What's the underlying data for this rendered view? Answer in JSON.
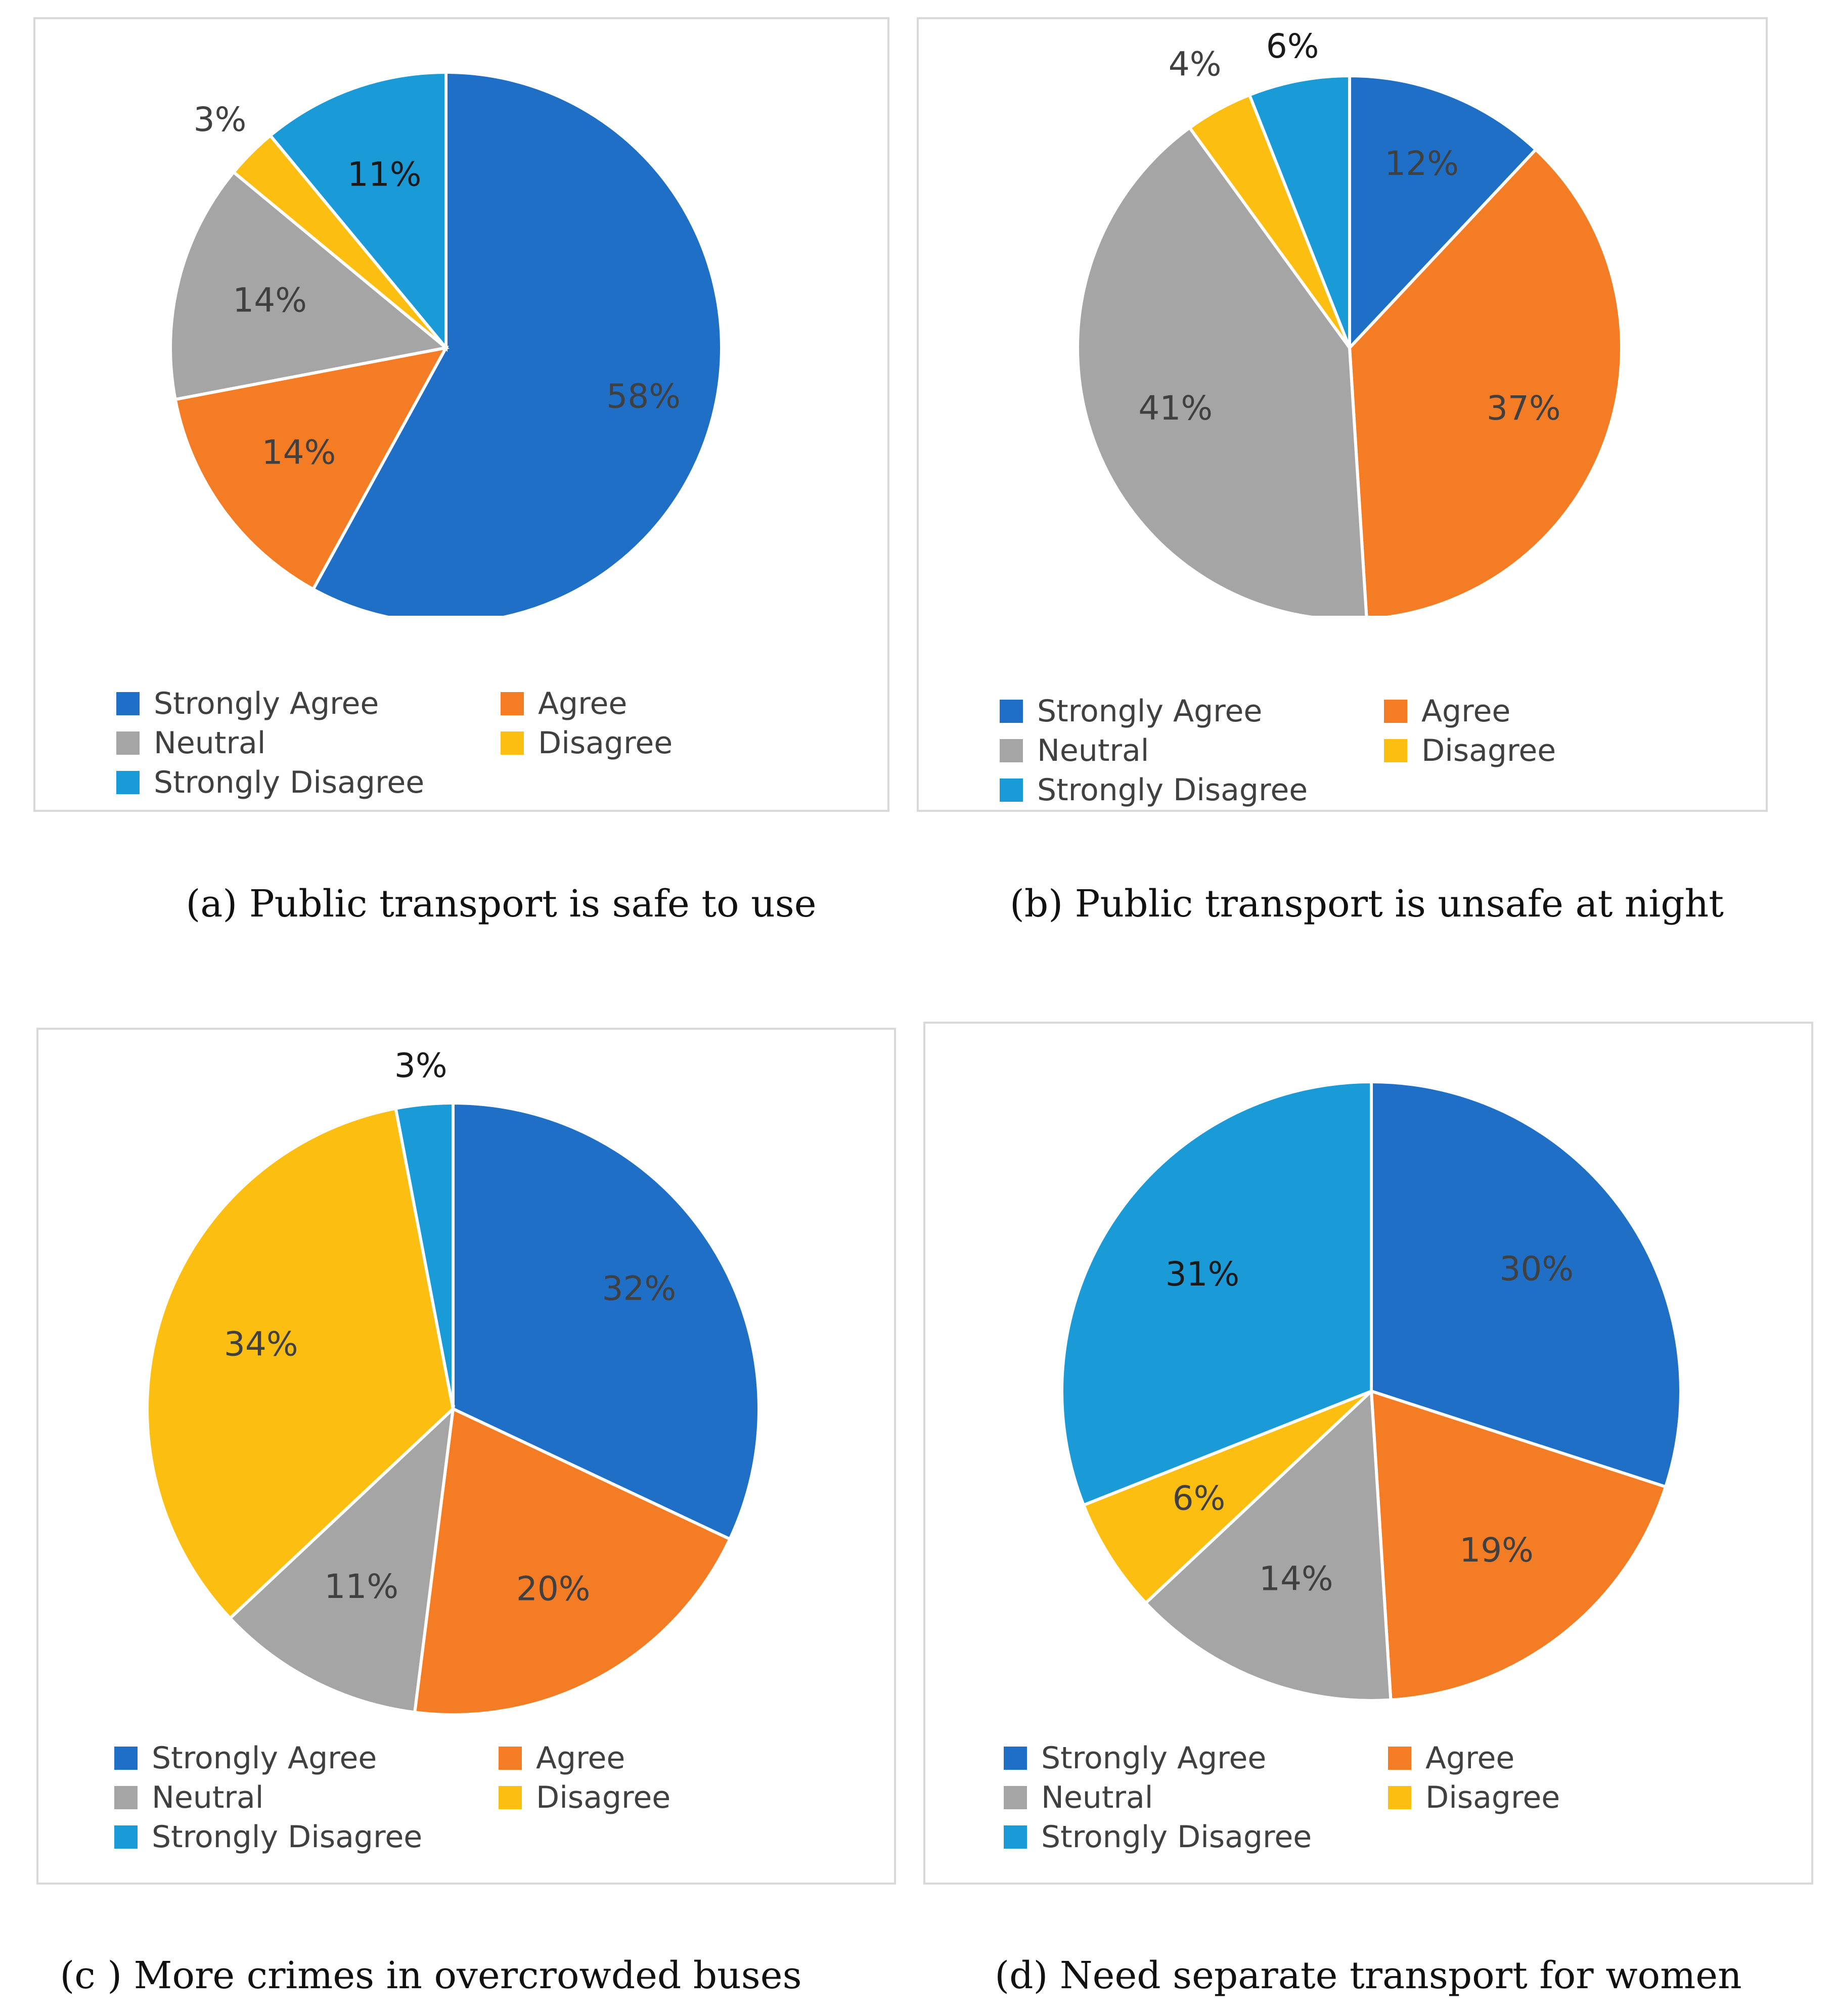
{
  "categories": [
    "Strongly Agree",
    "Agree",
    "Neutral",
    "Disagree",
    "Strongly Disagree"
  ],
  "colors": {
    "Strongly Agree": "#1f6fc6",
    "Agree": "#f47c25",
    "Neutral": "#a5a5a5",
    "Disagree": "#fdbe12",
    "Strongly Disagree": "#1a9bd7"
  },
  "chart_data": [
    {
      "type": "pie",
      "title": "(a)  Public transport is safe to use",
      "slices": [
        {
          "label": "Strongly Agree",
          "value": 58,
          "text": "58%"
        },
        {
          "label": "Agree",
          "value": 14,
          "text": "14%"
        },
        {
          "label": "Neutral",
          "value": 14,
          "text": "14%"
        },
        {
          "label": "Disagree",
          "value": 3,
          "text": "3%"
        },
        {
          "label": "Strongly Disagree",
          "value": 11,
          "text": "11%"
        }
      ]
    },
    {
      "type": "pie",
      "title": "(b) Public transport is unsafe at night",
      "slices": [
        {
          "label": "Strongly Agree",
          "value": 12,
          "text": "12%"
        },
        {
          "label": "Agree",
          "value": 37,
          "text": "37%"
        },
        {
          "label": "Neutral",
          "value": 41,
          "text": "41%"
        },
        {
          "label": "Disagree",
          "value": 4,
          "text": "4%"
        },
        {
          "label": "Strongly Disagree",
          "value": 6,
          "text": "6%"
        }
      ]
    },
    {
      "type": "pie",
      "title": "(c ) More crimes in overcrowded buses",
      "slices": [
        {
          "label": "Strongly Agree",
          "value": 32,
          "text": "32%"
        },
        {
          "label": "Agree",
          "value": 20,
          "text": "20%"
        },
        {
          "label": "Neutral",
          "value": 11,
          "text": "11%"
        },
        {
          "label": "Disagree",
          "value": 34,
          "text": "34%"
        },
        {
          "label": "Strongly Disagree",
          "value": 3,
          "text": "3%"
        }
      ]
    },
    {
      "type": "pie",
      "title": "(d) Need separate transport for women",
      "slices": [
        {
          "label": "Strongly Agree",
          "value": 30,
          "text": "30%"
        },
        {
          "label": "Agree",
          "value": 19,
          "text": "19%"
        },
        {
          "label": "Neutral",
          "value": 14,
          "text": "14%"
        },
        {
          "label": "Disagree",
          "value": 6,
          "text": "6%"
        },
        {
          "label": "Strongly Disagree",
          "value": 31,
          "text": "31%"
        }
      ]
    }
  ]
}
